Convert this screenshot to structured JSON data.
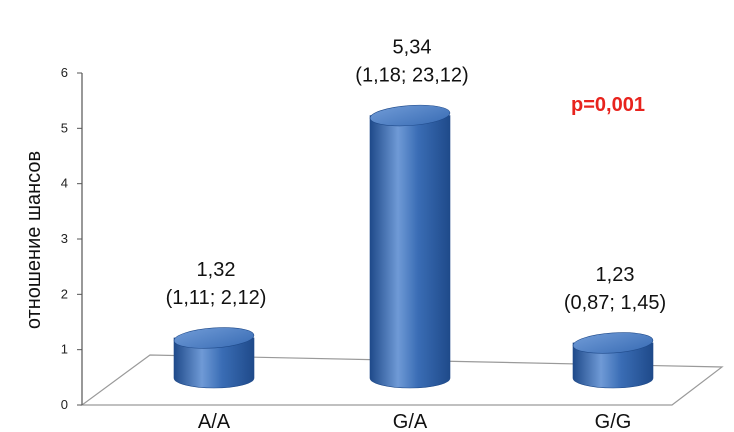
{
  "chart_data": {
    "type": "bar",
    "style": "3d-cylinder",
    "categories": [
      "A/A",
      "G/A",
      "G/G"
    ],
    "values": [
      1.32,
      5.34,
      1.23
    ],
    "data_labels": [
      {
        "value": "1,32",
        "ci": "(1,11; 2,12)"
      },
      {
        "value": "5,34",
        "ci": "(1,18; 23,12)"
      },
      {
        "value": "1,23",
        "ci": "(0,87; 1,45)"
      }
    ],
    "y_ticks": [
      "0",
      "1",
      "2",
      "3",
      "4",
      "5",
      "6"
    ],
    "ylim": [
      0,
      6
    ],
    "xlabel": "",
    "ylabel": "отношение шансов",
    "annotation": "p=0,001",
    "grid": false,
    "colors": {
      "bar": "#3a6db5",
      "bar_dark": "#1f4a8a",
      "bar_light": "#6f9ad6",
      "annotation": "#e8231d",
      "floor": "#ffffff",
      "floor_edge": "#9a9a9a"
    }
  }
}
